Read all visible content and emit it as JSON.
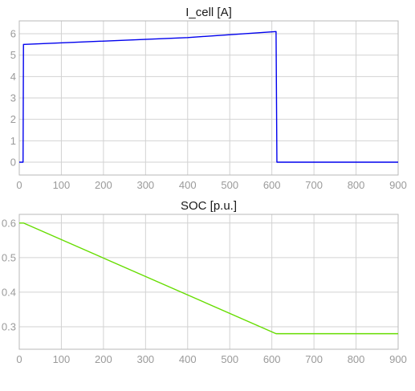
{
  "chart_data": [
    {
      "type": "line",
      "title": "I_cell [A]",
      "xlabel": "",
      "ylabel": "",
      "xlim": [
        0,
        900
      ],
      "ylim": [
        -0.6,
        6.6
      ],
      "xticks": [
        0,
        100,
        200,
        300,
        400,
        500,
        600,
        700,
        800,
        900
      ],
      "yticks": [
        0,
        1,
        2,
        3,
        4,
        5,
        6
      ],
      "grid": true,
      "series": [
        {
          "color": "#0000ee",
          "x": [
            0,
            9,
            10,
            12,
            400,
            610,
            610,
            612,
            900
          ],
          "y": [
            0,
            0,
            5.5,
            5.5,
            5.82,
            6.1,
            6.1,
            0,
            0
          ]
        }
      ]
    },
    {
      "type": "line",
      "title": "SOC [p.u.]",
      "xlabel": "",
      "ylabel": "",
      "xlim": [
        0,
        900
      ],
      "ylim": [
        0.235,
        0.625
      ],
      "xticks": [
        0,
        100,
        200,
        300,
        400,
        500,
        600,
        700,
        800,
        900
      ],
      "yticks": [
        0.3,
        0.4,
        0.5,
        0.6
      ],
      "grid": true,
      "series": [
        {
          "color": "#66dd00",
          "x": [
            0,
            10,
            610,
            900
          ],
          "y": [
            0.6,
            0.6,
            0.28,
            0.28
          ]
        }
      ]
    }
  ]
}
